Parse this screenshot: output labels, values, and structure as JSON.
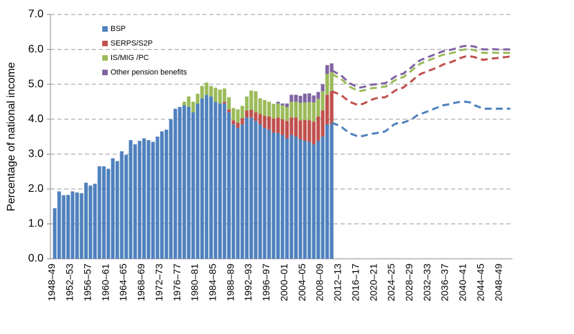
{
  "chart_data": {
    "type": "stacked-bar-projection",
    "y_label": "Percentage of national income",
    "categories": [
      "1948–49",
      null,
      null,
      null,
      "1952–53",
      null,
      null,
      null,
      "1956–57",
      null,
      null,
      null,
      "1960–61",
      null,
      null,
      null,
      "1964–65",
      null,
      null,
      null,
      "1968–69",
      null,
      null,
      null,
      "1972–73",
      null,
      null,
      null,
      "1976–77",
      null,
      null,
      null,
      "1980–81",
      null,
      null,
      null,
      "1984–85",
      null,
      null,
      null,
      "1988–89",
      null,
      null,
      null,
      "1992–93",
      null,
      null,
      null,
      "1996–97",
      null,
      null,
      null,
      "2000–01",
      null,
      null,
      null,
      "2004–05",
      null,
      null,
      null,
      "2008–09",
      null,
      null,
      null,
      "2012–13",
      null,
      null,
      null,
      "2016–17",
      null,
      null,
      null,
      "2020–21",
      null,
      null,
      null,
      "2024–25",
      null,
      null,
      null,
      "2028–29",
      null,
      null,
      null,
      "2032–33",
      null,
      null,
      null,
      "2036–37",
      null,
      null,
      null,
      "2040–41",
      null,
      null,
      null,
      "2044–45",
      null,
      null,
      null,
      "2048–49",
      null,
      null
    ],
    "series": [
      {
        "name": "BSP",
        "color": "#4f81bd",
        "values": [
          1.45,
          1.93,
          1.82,
          1.83,
          1.93,
          1.9,
          1.88,
          2.18,
          2.1,
          2.15,
          2.65,
          2.65,
          2.58,
          2.88,
          2.8,
          3.08,
          2.98,
          3.4,
          3.28,
          3.38,
          3.45,
          3.4,
          3.35,
          3.5,
          3.65,
          3.7,
          4.0,
          4.3,
          4.35,
          4.4,
          4.35,
          4.2,
          4.45,
          4.6,
          4.7,
          4.65,
          4.5,
          4.45,
          4.45,
          4.2,
          3.85,
          3.75,
          3.85,
          4.05,
          4.05,
          3.95,
          3.85,
          3.75,
          3.7,
          3.62,
          3.6,
          3.55,
          3.45,
          3.55,
          3.5,
          3.42,
          3.38,
          3.35,
          3.28,
          3.38,
          3.5,
          3.85,
          3.85,
          null,
          null,
          null,
          null,
          null,
          null,
          null,
          null,
          null,
          null,
          null,
          null,
          null,
          null,
          null,
          null,
          null,
          null,
          null,
          null,
          null,
          null,
          null,
          null,
          null,
          null,
          null,
          null,
          null,
          null,
          null,
          null,
          null,
          null,
          null,
          null,
          null,
          null,
          null,
          null
        ],
        "projection": [
          null,
          null,
          null,
          null,
          null,
          null,
          null,
          null,
          null,
          null,
          null,
          null,
          null,
          null,
          null,
          null,
          null,
          null,
          null,
          null,
          null,
          null,
          null,
          null,
          null,
          null,
          null,
          null,
          null,
          null,
          null,
          null,
          null,
          null,
          null,
          null,
          null,
          null,
          null,
          null,
          null,
          null,
          null,
          null,
          null,
          null,
          null,
          null,
          null,
          null,
          null,
          null,
          null,
          null,
          null,
          null,
          null,
          null,
          null,
          null,
          null,
          null,
          3.9,
          3.85,
          3.8,
          3.7,
          3.6,
          3.55,
          3.5,
          3.52,
          3.55,
          3.58,
          3.6,
          3.62,
          3.65,
          3.75,
          3.85,
          3.9,
          3.9,
          3.95,
          4.0,
          4.1,
          4.15,
          4.2,
          4.25,
          4.3,
          4.35,
          4.4,
          4.42,
          4.45,
          4.48,
          4.5,
          4.5,
          4.48,
          4.4,
          4.35,
          4.3,
          4.3,
          4.3,
          4.3,
          4.3,
          4.3,
          4.3
        ]
      },
      {
        "name": "SERPS/S2P",
        "color": "#c0504d",
        "values": [
          0,
          0,
          0,
          0,
          0,
          0,
          0,
          0,
          0,
          0,
          0,
          0,
          0,
          0,
          0,
          0,
          0,
          0,
          0,
          0,
          0,
          0,
          0,
          0,
          0,
          0,
          0,
          0,
          0,
          0,
          0,
          0,
          0,
          0,
          0,
          0,
          0,
          0,
          0.05,
          0.08,
          0.12,
          0.15,
          0.18,
          0.2,
          0.22,
          0.25,
          0.3,
          0.35,
          0.38,
          0.4,
          0.45,
          0.45,
          0.5,
          0.5,
          0.55,
          0.55,
          0.6,
          0.62,
          0.65,
          0.7,
          0.75,
          0.85,
          0.95,
          null,
          null,
          null,
          null,
          null,
          null,
          null,
          null,
          null,
          null,
          null,
          null,
          null,
          null,
          null,
          null,
          null,
          null,
          null,
          null,
          null,
          null,
          null,
          null,
          null,
          null,
          null,
          null,
          null,
          null,
          null,
          null,
          null,
          null,
          null,
          null,
          null,
          null,
          null,
          null
        ],
        "projection": [
          null,
          null,
          null,
          null,
          null,
          null,
          null,
          null,
          null,
          null,
          null,
          null,
          null,
          null,
          null,
          null,
          null,
          null,
          null,
          null,
          null,
          null,
          null,
          null,
          null,
          null,
          null,
          null,
          null,
          null,
          null,
          null,
          null,
          null,
          null,
          null,
          null,
          null,
          null,
          null,
          null,
          null,
          null,
          null,
          null,
          null,
          null,
          null,
          null,
          null,
          null,
          null,
          null,
          null,
          null,
          null,
          null,
          null,
          null,
          null,
          null,
          null,
          0.9,
          0.9,
          0.9,
          0.9,
          0.9,
          0.9,
          0.9,
          0.92,
          0.95,
          0.98,
          1.0,
          1.0,
          0.98,
          0.96,
          0.95,
          0.98,
          1.0,
          1.05,
          1.1,
          1.12,
          1.15,
          1.15,
          1.15,
          1.15,
          1.15,
          1.17,
          1.18,
          1.2,
          1.22,
          1.26,
          1.3,
          1.32,
          1.38,
          1.38,
          1.4,
          1.42,
          1.44,
          1.45,
          1.47,
          1.48,
          1.5
        ]
      },
      {
        "name": "IS/MIG /PC",
        "color": "#9bbb59",
        "values": [
          0,
          0,
          0,
          0,
          0,
          0,
          0,
          0,
          0,
          0,
          0,
          0,
          0,
          0,
          0,
          0,
          0,
          0,
          0,
          0,
          0,
          0,
          0,
          0,
          0,
          0,
          0,
          0,
          0,
          0.1,
          0.3,
          0.3,
          0.28,
          0.35,
          0.35,
          0.3,
          0.4,
          0.4,
          0.38,
          0.35,
          0.35,
          0.38,
          0.35,
          0.4,
          0.55,
          0.6,
          0.45,
          0.45,
          0.42,
          0.42,
          0.4,
          0.4,
          0.4,
          0.45,
          0.45,
          0.5,
          0.5,
          0.52,
          0.55,
          0.5,
          0.55,
          0.6,
          0.55,
          null,
          null,
          null,
          null,
          null,
          null,
          null,
          null,
          null,
          null,
          null,
          null,
          null,
          null,
          null,
          null,
          null,
          null,
          null,
          null,
          null,
          null,
          null,
          null,
          null,
          null,
          null,
          null,
          null,
          null,
          null,
          null,
          null,
          null,
          null,
          null,
          null,
          null,
          null,
          null
        ],
        "projection": [
          null,
          null,
          null,
          null,
          null,
          null,
          null,
          null,
          null,
          null,
          null,
          null,
          null,
          null,
          null,
          null,
          null,
          null,
          null,
          null,
          null,
          null,
          null,
          null,
          null,
          null,
          null,
          null,
          null,
          null,
          null,
          null,
          null,
          null,
          null,
          null,
          null,
          null,
          null,
          null,
          null,
          null,
          null,
          null,
          null,
          null,
          null,
          null,
          null,
          null,
          null,
          null,
          null,
          null,
          null,
          null,
          null,
          null,
          null,
          null,
          null,
          null,
          0.5,
          0.48,
          0.47,
          0.45,
          0.43,
          0.42,
          0.4,
          0.38,
          0.35,
          0.33,
          0.3,
          0.3,
          0.3,
          0.3,
          0.3,
          0.3,
          0.3,
          0.3,
          0.3,
          0.3,
          0.3,
          0.3,
          0.3,
          0.3,
          0.3,
          0.28,
          0.27,
          0.25,
          0.23,
          0.22,
          0.2,
          0.2,
          0.2,
          0.2,
          0.2,
          0.18,
          0.17,
          0.15,
          0.13,
          0.12,
          0.1
        ]
      },
      {
        "name": "Other pension benefits",
        "color": "#8064a2",
        "values": [
          0,
          0,
          0,
          0,
          0,
          0,
          0,
          0,
          0,
          0,
          0,
          0,
          0,
          0,
          0,
          0,
          0,
          0,
          0,
          0,
          0,
          0,
          0,
          0,
          0,
          0,
          0,
          0,
          0,
          0,
          0,
          0,
          0,
          0,
          0,
          0,
          0,
          0,
          0,
          0,
          0,
          0,
          0,
          0,
          0,
          0,
          0,
          0,
          0,
          0,
          0.05,
          0.05,
          0.1,
          0.2,
          0.2,
          0.2,
          0.25,
          0.25,
          0.2,
          0.2,
          0.2,
          0.25,
          0.25,
          null,
          null,
          null,
          null,
          null,
          null,
          null,
          null,
          null,
          null,
          null,
          null,
          null,
          null,
          null,
          null,
          null,
          null,
          null,
          null,
          null,
          null,
          null,
          null,
          null,
          null,
          null,
          null,
          null,
          null,
          null,
          null,
          null,
          null,
          null,
          null,
          null,
          null,
          null,
          null
        ],
        "projection": [
          null,
          null,
          null,
          null,
          null,
          null,
          null,
          null,
          null,
          null,
          null,
          null,
          null,
          null,
          null,
          null,
          null,
          null,
          null,
          null,
          null,
          null,
          null,
          null,
          null,
          null,
          null,
          null,
          null,
          null,
          null,
          null,
          null,
          null,
          null,
          null,
          null,
          null,
          null,
          null,
          null,
          null,
          null,
          null,
          null,
          null,
          null,
          null,
          null,
          null,
          null,
          null,
          null,
          null,
          null,
          null,
          null,
          null,
          null,
          null,
          null,
          null,
          0.1,
          0.1,
          0.1,
          0.1,
          0.1,
          0.1,
          0.1,
          0.1,
          0.1,
          0.1,
          0.1,
          0.1,
          0.1,
          0.1,
          0.1,
          0.1,
          0.1,
          0.1,
          0.1,
          0.1,
          0.1,
          0.1,
          0.1,
          0.1,
          0.1,
          0.1,
          0.1,
          0.1,
          0.1,
          0.1,
          0.1,
          0.1,
          0.1,
          0.1,
          0.1,
          0.1,
          0.1,
          0.1,
          0.1,
          0.1,
          0.1
        ]
      }
    ],
    "ylim": [
      0,
      7
    ],
    "yticks": [
      {
        "value": 0,
        "label": "0.0"
      },
      {
        "value": 1,
        "label": "1.0"
      },
      {
        "value": 2,
        "label": "2.0"
      },
      {
        "value": 3,
        "label": "3.0"
      },
      {
        "value": 4,
        "label": "4.0"
      },
      {
        "value": 5,
        "label": "5.0"
      },
      {
        "value": 6,
        "label": "6.0"
      },
      {
        "value": 7,
        "label": "7.0"
      }
    ],
    "grid": true,
    "legend": "top-left"
  }
}
